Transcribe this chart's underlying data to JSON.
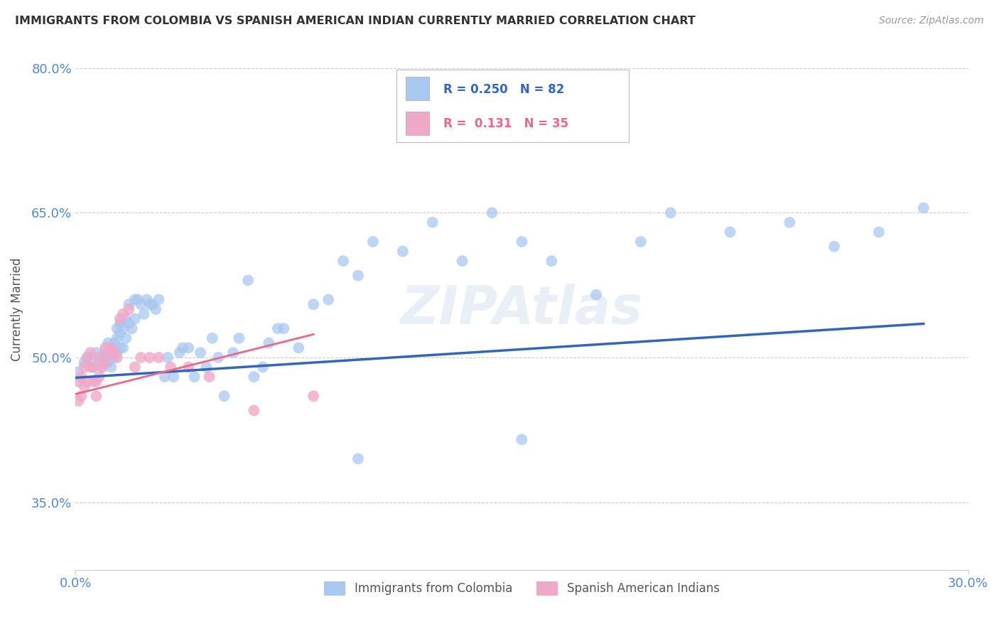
{
  "title": "IMMIGRANTS FROM COLOMBIA VS SPANISH AMERICAN INDIAN CURRENTLY MARRIED CORRELATION CHART",
  "source": "Source: ZipAtlas.com",
  "ylabel": "Currently Married",
  "xlim": [
    0.0,
    0.3
  ],
  "ylim": [
    0.28,
    0.82
  ],
  "y_ticks": [
    0.35,
    0.5,
    0.65,
    0.8
  ],
  "y_tick_labels": [
    "35.0%",
    "50.0%",
    "65.0%",
    "80.0%"
  ],
  "color_blue": "#a8c8f0",
  "color_pink": "#f0a8c8",
  "line_color_blue": "#3366bb",
  "line_color_pink": "#ee6688",
  "colombia_x": [
    0.001,
    0.003,
    0.004,
    0.005,
    0.006,
    0.007,
    0.008,
    0.009,
    0.01,
    0.01,
    0.011,
    0.011,
    0.012,
    0.012,
    0.012,
    0.013,
    0.013,
    0.014,
    0.014,
    0.014,
    0.015,
    0.015,
    0.015,
    0.016,
    0.016,
    0.017,
    0.017,
    0.018,
    0.018,
    0.019,
    0.02,
    0.02,
    0.021,
    0.022,
    0.023,
    0.024,
    0.025,
    0.026,
    0.027,
    0.028,
    0.03,
    0.031,
    0.033,
    0.035,
    0.036,
    0.038,
    0.04,
    0.042,
    0.044,
    0.046,
    0.048,
    0.05,
    0.053,
    0.055,
    0.058,
    0.06,
    0.063,
    0.065,
    0.068,
    0.07,
    0.075,
    0.08,
    0.085,
    0.09,
    0.095,
    0.1,
    0.11,
    0.12,
    0.13,
    0.14,
    0.15,
    0.16,
    0.175,
    0.19,
    0.2,
    0.22,
    0.24,
    0.255,
    0.27,
    0.285,
    0.095,
    0.15
  ],
  "colombia_y": [
    0.485,
    0.495,
    0.5,
    0.495,
    0.49,
    0.505,
    0.495,
    0.49,
    0.505,
    0.5,
    0.515,
    0.495,
    0.505,
    0.51,
    0.49,
    0.515,
    0.5,
    0.53,
    0.52,
    0.505,
    0.535,
    0.525,
    0.51,
    0.53,
    0.51,
    0.54,
    0.52,
    0.555,
    0.535,
    0.53,
    0.56,
    0.54,
    0.56,
    0.555,
    0.545,
    0.56,
    0.555,
    0.555,
    0.55,
    0.56,
    0.48,
    0.5,
    0.48,
    0.505,
    0.51,
    0.51,
    0.48,
    0.505,
    0.49,
    0.52,
    0.5,
    0.46,
    0.505,
    0.52,
    0.58,
    0.48,
    0.49,
    0.515,
    0.53,
    0.53,
    0.51,
    0.555,
    0.56,
    0.6,
    0.585,
    0.62,
    0.61,
    0.64,
    0.6,
    0.65,
    0.62,
    0.6,
    0.565,
    0.62,
    0.65,
    0.63,
    0.64,
    0.615,
    0.63,
    0.655,
    0.395,
    0.415
  ],
  "spanish_x": [
    0.001,
    0.001,
    0.002,
    0.002,
    0.003,
    0.003,
    0.004,
    0.004,
    0.005,
    0.005,
    0.006,
    0.006,
    0.007,
    0.007,
    0.008,
    0.008,
    0.009,
    0.01,
    0.01,
    0.011,
    0.012,
    0.013,
    0.014,
    0.015,
    0.016,
    0.018,
    0.02,
    0.022,
    0.025,
    0.028,
    0.032,
    0.038,
    0.045,
    0.06,
    0.08
  ],
  "spanish_y": [
    0.475,
    0.455,
    0.48,
    0.46,
    0.49,
    0.47,
    0.5,
    0.475,
    0.505,
    0.49,
    0.49,
    0.475,
    0.475,
    0.46,
    0.5,
    0.48,
    0.49,
    0.51,
    0.495,
    0.505,
    0.51,
    0.505,
    0.5,
    0.54,
    0.545,
    0.55,
    0.49,
    0.5,
    0.5,
    0.5,
    0.49,
    0.49,
    0.48,
    0.445,
    0.46
  ],
  "blue_line_x0": 0.0,
  "blue_line_y0": 0.479,
  "blue_line_x1": 0.285,
  "blue_line_y1": 0.535,
  "pink_line_x0": 0.0,
  "pink_line_y0": 0.462,
  "pink_line_x1": 0.08,
  "pink_line_y1": 0.524
}
